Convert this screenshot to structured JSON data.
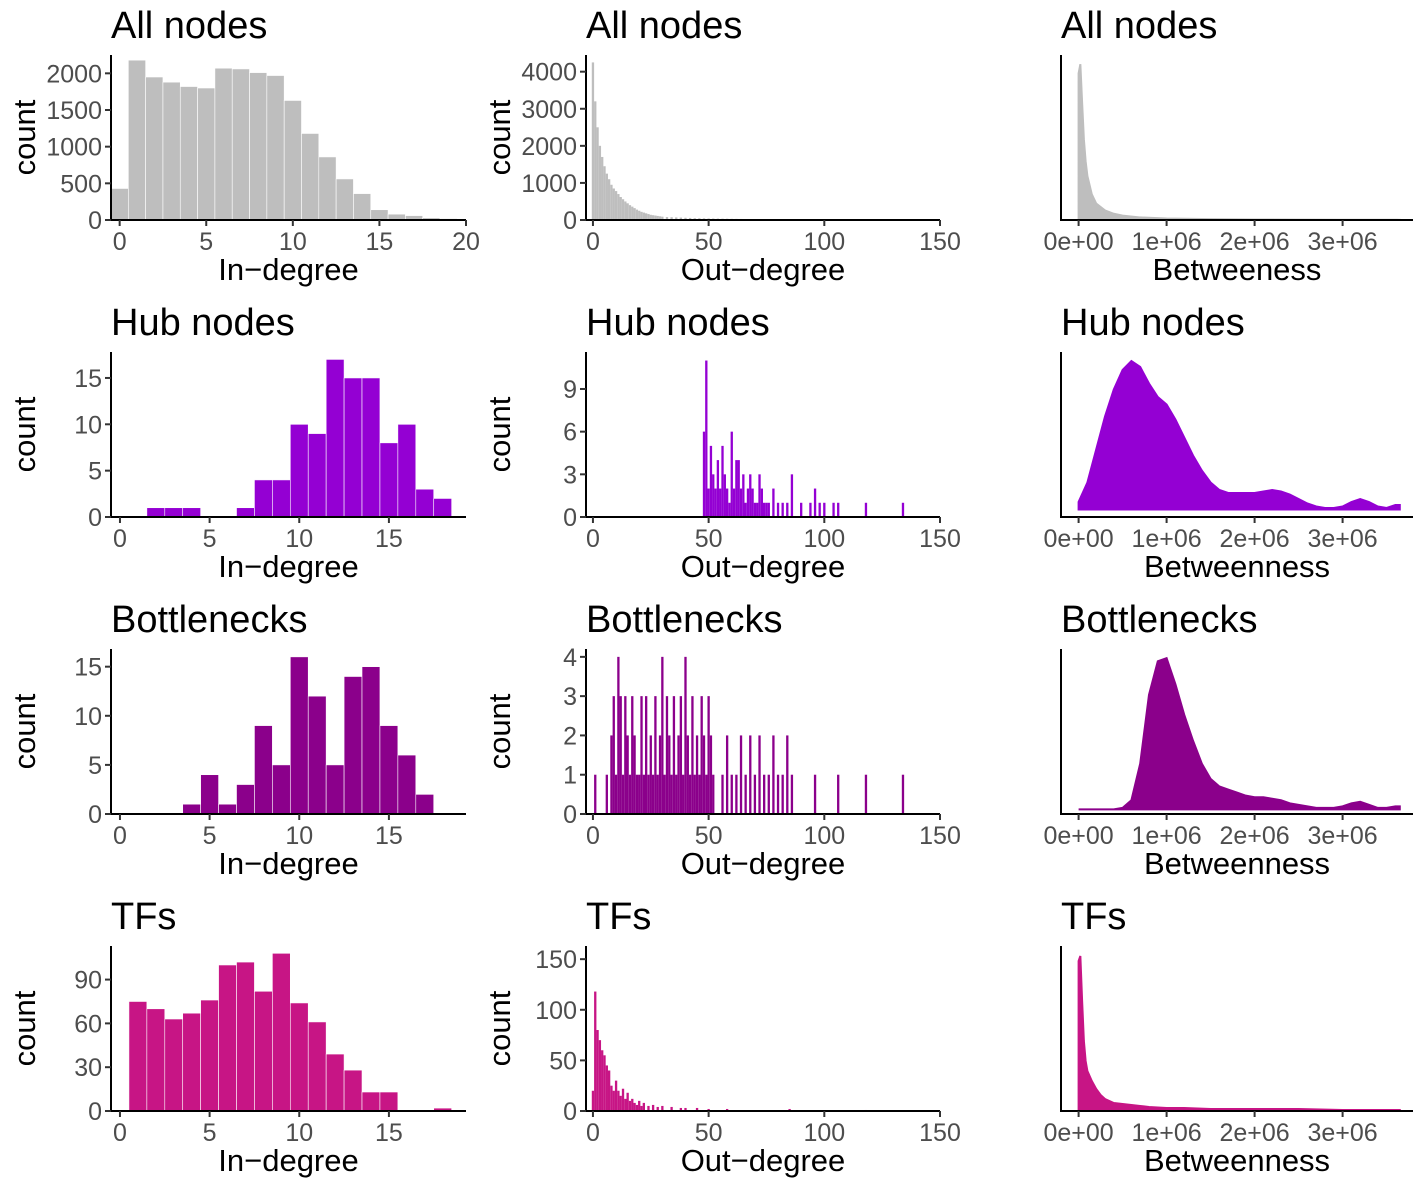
{
  "colors": {
    "all_nodes": "#bebebe",
    "hub_nodes": "#9400d3",
    "bottlenecks": "#8b008b",
    "tfs": "#c71585"
  },
  "chart_data": [
    {
      "type": "bar",
      "title": "All nodes",
      "xlabel": "In−degree",
      "ylabel": "count",
      "color_key": "all_nodes",
      "x": [
        0,
        1,
        2,
        3,
        4,
        5,
        6,
        7,
        8,
        9,
        10,
        11,
        12,
        13,
        14,
        15,
        16,
        17,
        18,
        19
      ],
      "values": [
        430,
        2180,
        1950,
        1880,
        1820,
        1800,
        2070,
        2060,
        2010,
        1970,
        1630,
        1180,
        860,
        560,
        360,
        140,
        80,
        60,
        30,
        20
      ],
      "xlim": [
        -0.5,
        20
      ],
      "ylim": [
        0,
        2250
      ],
      "xticks": [
        0,
        5,
        10,
        15,
        20
      ],
      "yticks": [
        0,
        500,
        1000,
        1500,
        2000
      ]
    },
    {
      "type": "bar",
      "title": "All nodes",
      "xlabel": "Out−degree",
      "ylabel": "count",
      "color_key": "all_nodes",
      "x": [
        0,
        1,
        2,
        3,
        4,
        5,
        6,
        7,
        8,
        9,
        10,
        11,
        12,
        13,
        14,
        15,
        16,
        17,
        18,
        19,
        20,
        21,
        22,
        23,
        24,
        25,
        26,
        27,
        28,
        29,
        30,
        32,
        34,
        36,
        38,
        40,
        42,
        44,
        46,
        48,
        50,
        52,
        54,
        56,
        58,
        60,
        62,
        64,
        66,
        68,
        70,
        72,
        74,
        76,
        80,
        84,
        88,
        95,
        100,
        108,
        118,
        133,
        143
      ],
      "values": [
        4250,
        3200,
        2500,
        2000,
        1700,
        1450,
        1250,
        1100,
        950,
        850,
        780,
        700,
        620,
        560,
        500,
        450,
        400,
        360,
        320,
        280,
        250,
        220,
        200,
        180,
        160,
        140,
        130,
        120,
        110,
        100,
        90,
        80,
        75,
        70,
        65,
        60,
        55,
        50,
        48,
        45,
        42,
        40,
        38,
        36,
        34,
        32,
        30,
        28,
        26,
        24,
        22,
        20,
        18,
        16,
        14,
        12,
        10,
        8,
        8,
        6,
        6,
        5,
        5
      ],
      "xlim": [
        -3,
        150
      ],
      "ylim": [
        0,
        4450
      ],
      "xticks": [
        0,
        50,
        100,
        150
      ],
      "yticks": [
        0,
        1000,
        2000,
        3000,
        4000
      ]
    },
    {
      "type": "area",
      "title": "All nodes",
      "xlabel": "Betweeness",
      "ylabel": "",
      "color_key": "all_nodes",
      "x": [
        0,
        20000,
        40000,
        60000,
        80000,
        100000,
        150000,
        200000,
        300000,
        400000,
        500000,
        700000,
        1000000,
        1500000,
        2000000,
        2500000,
        3000000,
        3500000,
        3650000
      ],
      "values": [
        4000,
        4250,
        3200,
        2200,
        1600,
        1200,
        700,
        450,
        260,
        170,
        120,
        70,
        40,
        25,
        15,
        10,
        8,
        6,
        5
      ],
      "xlim": [
        -200000,
        3800000
      ],
      "ylim": [
        0,
        4500
      ],
      "xticks": [
        0,
        1000000,
        2000000,
        3000000
      ],
      "xticklabels": [
        "0e+00",
        "1e+06",
        "2e+06",
        "3e+06"
      ],
      "yticks": []
    },
    {
      "type": "bar",
      "title": "Hub nodes",
      "xlabel": "In−degree",
      "ylabel": "count",
      "color_key": "hub_nodes",
      "x": [
        2,
        3,
        4,
        5,
        6,
        7,
        8,
        9,
        10,
        11,
        12,
        13,
        14,
        15,
        16,
        17,
        18
      ],
      "values": [
        1,
        1,
        1,
        0,
        0,
        1,
        4,
        4,
        10,
        9,
        17,
        15,
        15,
        8,
        10,
        3,
        2
      ],
      "xlim": [
        -0.5,
        19.3
      ],
      "ylim": [
        0,
        17.8
      ],
      "xticks": [
        0,
        5,
        10,
        15
      ],
      "yticks": [
        0,
        5,
        10,
        15
      ]
    },
    {
      "type": "bar",
      "title": "Hub nodes",
      "xlabel": "Out−degree",
      "ylabel": "count",
      "color_key": "hub_nodes",
      "x": [
        48,
        49,
        50,
        51,
        52,
        53,
        54,
        55,
        56,
        57,
        58,
        59,
        60,
        61,
        62,
        63,
        64,
        65,
        66,
        67,
        68,
        69,
        70,
        71,
        72,
        73,
        74,
        75,
        76,
        78,
        80,
        82,
        84,
        86,
        90,
        94,
        96,
        98,
        100,
        104,
        106,
        118,
        134
      ],
      "values": [
        6,
        11,
        2,
        5,
        3,
        2,
        4,
        2,
        5,
        3,
        2,
        1,
        6,
        2,
        4,
        4,
        2,
        3,
        1,
        2,
        3,
        2,
        1,
        1,
        3,
        2,
        1,
        1,
        1,
        2,
        1,
        1,
        1,
        3,
        1,
        1,
        2,
        1,
        1,
        1,
        1,
        1,
        1
      ],
      "xlim": [
        -3,
        150
      ],
      "ylim": [
        0,
        11.6
      ],
      "xticks": [
        0,
        50,
        100,
        150
      ],
      "yticks": [
        0,
        3,
        6,
        9
      ]
    },
    {
      "type": "area",
      "title": "Hub nodes",
      "xlabel": "Betweenness",
      "ylabel": "",
      "color_key": "hub_nodes",
      "x": [
        0,
        100000,
        200000,
        300000,
        400000,
        500000,
        600000,
        700000,
        800000,
        900000,
        1000000,
        1100000,
        1200000,
        1300000,
        1400000,
        1500000,
        1600000,
        1700000,
        1800000,
        1900000,
        2000000,
        2100000,
        2200000,
        2300000,
        2400000,
        2500000,
        2600000,
        2700000,
        2800000,
        2900000,
        3000000,
        3100000,
        3200000,
        3300000,
        3400000,
        3500000,
        3600000,
        3650000
      ],
      "values": [
        0.05,
        0.18,
        0.4,
        0.62,
        0.8,
        0.93,
        0.99,
        0.95,
        0.84,
        0.75,
        0.7,
        0.6,
        0.48,
        0.36,
        0.26,
        0.18,
        0.13,
        0.11,
        0.11,
        0.11,
        0.11,
        0.12,
        0.13,
        0.12,
        0.1,
        0.07,
        0.04,
        0.02,
        0.01,
        0.01,
        0.02,
        0.05,
        0.07,
        0.05,
        0.02,
        0.01,
        0.03,
        0.03
      ],
      "xlim": [
        -200000,
        3800000
      ],
      "ylim": [
        -0.05,
        1.05
      ],
      "xticks": [
        0,
        1000000,
        2000000,
        3000000
      ],
      "xticklabels": [
        "0e+00",
        "1e+06",
        "2e+06",
        "3e+06"
      ],
      "yticks": []
    },
    {
      "type": "bar",
      "title": "Bottlenecks",
      "xlabel": "In−degree",
      "ylabel": "count",
      "color_key": "bottlenecks",
      "x": [
        4,
        5,
        6,
        7,
        8,
        9,
        10,
        11,
        12,
        13,
        14,
        15,
        16,
        17
      ],
      "values": [
        1,
        4,
        1,
        3,
        9,
        5,
        16,
        12,
        5,
        14,
        15,
        9,
        6,
        2
      ],
      "xlim": [
        -0.5,
        19.3
      ],
      "ylim": [
        0,
        16.8
      ],
      "xticks": [
        0,
        5,
        10,
        15
      ],
      "yticks": [
        0,
        5,
        10,
        15
      ]
    },
    {
      "type": "bar",
      "title": "Bottlenecks",
      "xlabel": "Out−degree",
      "ylabel": "count",
      "color_key": "bottlenecks",
      "x": [
        1,
        6,
        8,
        9,
        10,
        11,
        12,
        13,
        14,
        15,
        16,
        17,
        18,
        19,
        20,
        21,
        22,
        23,
        24,
        25,
        26,
        27,
        28,
        29,
        30,
        31,
        32,
        33,
        34,
        35,
        36,
        37,
        38,
        39,
        40,
        41,
        42,
        43,
        44,
        45,
        46,
        47,
        48,
        49,
        50,
        51,
        52,
        56,
        58,
        60,
        62,
        64,
        66,
        68,
        70,
        72,
        74,
        76,
        78,
        80,
        82,
        84,
        86,
        96,
        106,
        118,
        134
      ],
      "values": [
        1,
        1,
        2,
        3,
        1,
        4,
        3,
        1,
        3,
        2,
        1,
        3,
        2,
        1,
        1,
        3,
        1,
        3,
        1,
        2,
        1,
        3,
        1,
        2,
        4,
        1,
        3,
        2,
        1,
        3,
        1,
        2,
        3,
        1,
        4,
        2,
        1,
        3,
        1,
        2,
        1,
        3,
        2,
        1,
        3,
        2,
        1,
        1,
        2,
        1,
        1,
        2,
        1,
        2,
        1,
        2,
        1,
        1,
        2,
        1,
        1,
        2,
        1,
        1,
        1,
        1,
        1
      ],
      "xlim": [
        -3,
        150
      ],
      "ylim": [
        0,
        4.2
      ],
      "xticks": [
        0,
        50,
        100,
        150
      ],
      "yticks": [
        0,
        1,
        2,
        3,
        4
      ]
    },
    {
      "type": "area",
      "title": "Bottlenecks",
      "xlabel": "Betweenness",
      "ylabel": "",
      "color_key": "bottlenecks",
      "x": [
        0,
        200000,
        400000,
        500000,
        600000,
        700000,
        800000,
        900000,
        1000000,
        1100000,
        1200000,
        1300000,
        1400000,
        1500000,
        1600000,
        1700000,
        1800000,
        1900000,
        2000000,
        2100000,
        2200000,
        2300000,
        2400000,
        2500000,
        2600000,
        2700000,
        2800000,
        2900000,
        3000000,
        3100000,
        3200000,
        3300000,
        3400000,
        3500000,
        3600000,
        3650000
      ],
      "values": [
        0,
        0,
        0,
        0.01,
        0.06,
        0.3,
        0.75,
        0.97,
        0.99,
        0.82,
        0.62,
        0.45,
        0.3,
        0.2,
        0.15,
        0.13,
        0.11,
        0.09,
        0.08,
        0.08,
        0.07,
        0.06,
        0.04,
        0.03,
        0.02,
        0.01,
        0.01,
        0.01,
        0.02,
        0.04,
        0.05,
        0.03,
        0.01,
        0.01,
        0.02,
        0.02
      ],
      "xlim": [
        -200000,
        3800000
      ],
      "ylim": [
        -0.03,
        1.05
      ],
      "xticks": [
        0,
        1000000,
        2000000,
        3000000
      ],
      "xticklabels": [
        "0e+00",
        "1e+06",
        "2e+06",
        "3e+06"
      ],
      "yticks": []
    },
    {
      "type": "bar",
      "title": "TFs",
      "xlabel": "In−degree",
      "ylabel": "count",
      "color_key": "tfs",
      "x": [
        1,
        2,
        3,
        4,
        5,
        6,
        7,
        8,
        9,
        10,
        11,
        12,
        13,
        14,
        15,
        16,
        17,
        18
      ],
      "values": [
        75,
        70,
        63,
        67,
        76,
        100,
        102,
        82,
        108,
        74,
        61,
        39,
        28,
        13,
        13,
        0,
        0,
        2
      ],
      "xlim": [
        -0.5,
        19.3
      ],
      "ylim": [
        0,
        113
      ],
      "xticks": [
        0,
        5,
        10,
        15
      ],
      "yticks": [
        0,
        30,
        60,
        90
      ]
    },
    {
      "type": "bar",
      "title": "TFs",
      "xlabel": "Out−degree",
      "ylabel": "count",
      "color_key": "tfs",
      "x": [
        0,
        1,
        2,
        3,
        4,
        5,
        6,
        7,
        8,
        9,
        10,
        11,
        12,
        13,
        14,
        15,
        16,
        17,
        18,
        19,
        20,
        21,
        22,
        24,
        26,
        28,
        30,
        34,
        38,
        40,
        45,
        50,
        58,
        85,
        118
      ],
      "values": [
        20,
        118,
        80,
        70,
        60,
        55,
        45,
        40,
        25,
        20,
        30,
        20,
        15,
        22,
        12,
        18,
        10,
        12,
        8,
        6,
        10,
        5,
        8,
        5,
        6,
        4,
        5,
        4,
        3,
        3,
        3,
        2,
        2,
        2,
        1
      ],
      "xlim": [
        -3,
        150
      ],
      "ylim": [
        0,
        163
      ],
      "xticks": [
        0,
        50,
        100,
        150
      ],
      "yticks": [
        0,
        50,
        100,
        150
      ]
    },
    {
      "type": "area",
      "title": "TFs",
      "xlabel": "Betweenness",
      "ylabel": "",
      "color_key": "tfs",
      "x": [
        0,
        20000,
        40000,
        60000,
        80000,
        100000,
        150000,
        200000,
        250000,
        300000,
        400000,
        500000,
        600000,
        700000,
        800000,
        1000000,
        1200000,
        1500000,
        2000000,
        2500000,
        3000000,
        3500000,
        3650000
      ],
      "values": [
        150,
        155,
        110,
        70,
        50,
        40,
        30,
        22,
        16,
        12,
        8,
        7,
        6,
        5,
        4,
        3,
        3,
        2,
        2,
        2,
        1,
        1,
        1
      ],
      "xlim": [
        -200000,
        3800000
      ],
      "ylim": [
        0,
        165
      ],
      "xticks": [
        0,
        1000000,
        2000000,
        3000000
      ],
      "xticklabels": [
        "0e+00",
        "1e+06",
        "2e+06",
        "3e+06"
      ],
      "yticks": []
    }
  ]
}
